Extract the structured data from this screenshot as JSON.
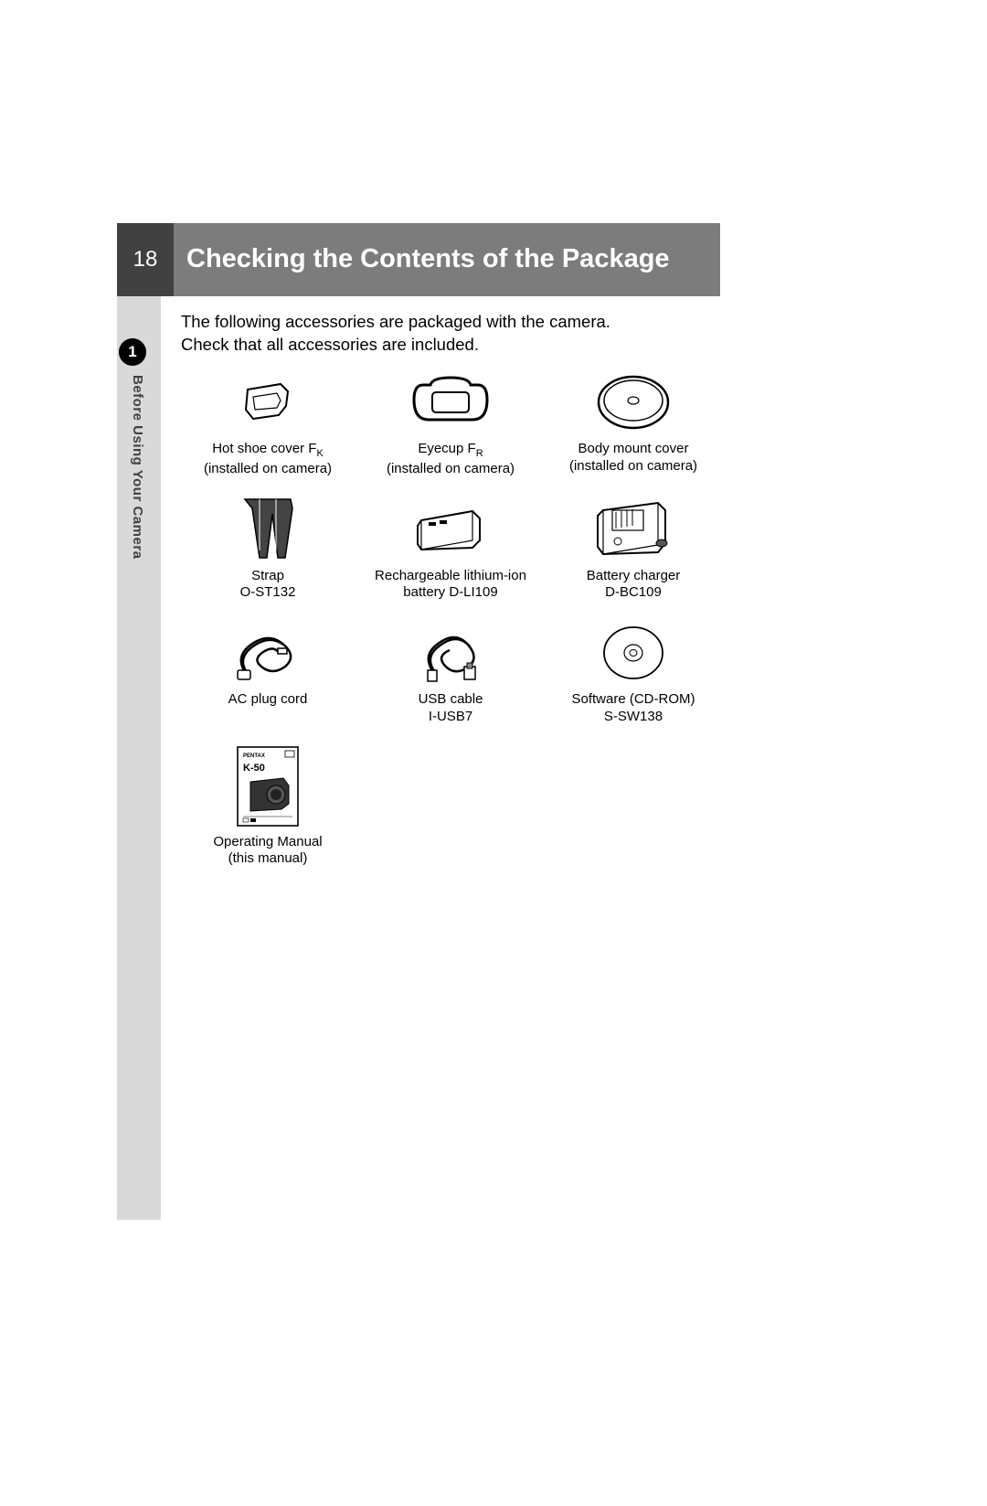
{
  "page_number": "18",
  "title": "Checking the Contents of the Package",
  "chapter_number": "1",
  "chapter_title": "Before Using Your Camera",
  "intro_line1": "The following accessories are packaged with the camera.",
  "intro_line2": "Check that all accessories are included.",
  "colors": {
    "title_bg": "#7c7c7c",
    "pagenum_bg": "#414141",
    "sidebar_bg": "#d9d9d9",
    "text": "#000000",
    "white": "#ffffff"
  },
  "items": [
    {
      "icon": "hot-shoe-cover",
      "label_html": "Hot shoe cover F<span class=\"sub\">K</span>\n(installed on camera)"
    },
    {
      "icon": "eyecup",
      "label_html": "Eyecup F<span class=\"sub\">R</span>\n(installed on camera)"
    },
    {
      "icon": "body-mount-cover",
      "label": "Body mount cover\n(installed on camera)"
    },
    {
      "icon": "strap",
      "label": "Strap\nO-ST132"
    },
    {
      "icon": "battery",
      "label": "Rechargeable lithium-ion\nbattery D-LI109"
    },
    {
      "icon": "charger",
      "label": "Battery charger\nD-BC109"
    },
    {
      "icon": "ac-cord",
      "label": "AC plug cord"
    },
    {
      "icon": "usb-cable",
      "label": "USB cable\nI-USB7"
    },
    {
      "icon": "cd-rom",
      "label": "Software (CD-ROM)\nS-SW138"
    },
    {
      "icon": "manual",
      "label": "Operating Manual\n(this manual)",
      "manual_model": "K-50",
      "manual_brand": "PENTAX"
    }
  ]
}
